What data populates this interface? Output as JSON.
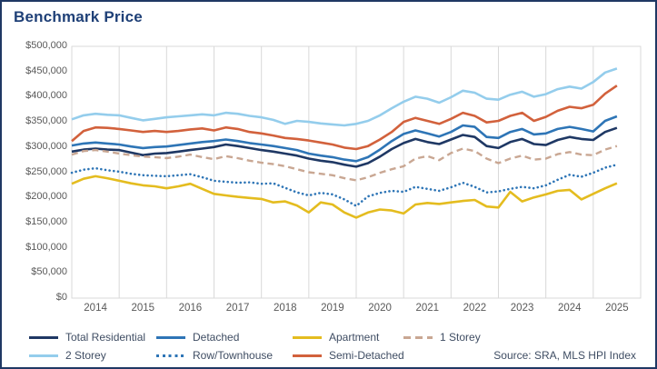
{
  "card": {
    "title": "Benchmark Price"
  },
  "colors": {
    "card_border": "#1F3864",
    "title_text": "#1F4077",
    "axis_text": "#595959",
    "legend_text": "#3F4D63",
    "gridline": "#D9D9D9"
  },
  "chart_data": {
    "type": "line",
    "title": "Benchmark Price",
    "xlabel": "",
    "ylabel": "",
    "xlim": [
      2014,
      2026
    ],
    "ylim": [
      0,
      500000
    ],
    "y_tick_step": 50000,
    "y_tick_labels": [
      "$0",
      "$50,000",
      "$100,000",
      "$150,000",
      "$200,000",
      "$250,000",
      "$300,000",
      "$350,000",
      "$400,000",
      "$450,000",
      "$500,000"
    ],
    "x_tick_labels": [
      "2014",
      "2015",
      "2016",
      "2017",
      "2018",
      "2019",
      "2020",
      "2021",
      "2022",
      "2023",
      "2024",
      "2025"
    ],
    "grid": "vertical-only",
    "legend_position": "bottom",
    "source": "Source: SRA, MLS HPI Index",
    "x_start": 2014,
    "x_step": 0.25,
    "series": [
      {
        "name": "Total Residential",
        "color": "#1F3864",
        "style": "solid",
        "values": [
          291000,
          295000,
          297000,
          295000,
          294000,
          289000,
          284000,
          287000,
          288000,
          291000,
          294000,
          297000,
          300000,
          305000,
          302000,
          298000,
          294000,
          291000,
          287000,
          283000,
          277000,
          273000,
          270000,
          265000,
          261000,
          268000,
          281000,
          296000,
          308000,
          316000,
          310000,
          306000,
          315000,
          324000,
          320000,
          302000,
          298000,
          310000,
          316000,
          306000,
          304000,
          314000,
          320000,
          316000,
          314000,
          330000,
          338000
        ]
      },
      {
        "name": "Detached",
        "color": "#2E75B6",
        "style": "solid",
        "values": [
          303000,
          307000,
          309000,
          307000,
          305000,
          301000,
          298000,
          300000,
          301000,
          304000,
          307000,
          310000,
          312000,
          315000,
          312000,
          308000,
          305000,
          302000,
          298000,
          294000,
          287000,
          283000,
          280000,
          275000,
          272000,
          280000,
          295000,
          312000,
          326000,
          333000,
          327000,
          321000,
          330000,
          343000,
          340000,
          320000,
          318000,
          330000,
          336000,
          325000,
          327000,
          336000,
          340000,
          336000,
          331000,
          352000,
          361000
        ]
      },
      {
        "name": "Apartment",
        "color": "#E4BC1F",
        "style": "solid",
        "values": [
          227000,
          237000,
          242000,
          238000,
          233000,
          228000,
          224000,
          222000,
          218000,
          222000,
          227000,
          217000,
          207000,
          204000,
          201000,
          199000,
          197000,
          190000,
          192000,
          184000,
          170000,
          190000,
          186000,
          170000,
          160000,
          170000,
          176000,
          174000,
          168000,
          186000,
          189000,
          187000,
          190000,
          193000,
          195000,
          182000,
          180000,
          211000,
          192000,
          200000,
          206000,
          213000,
          215000,
          196000,
          207000,
          218000,
          228000
        ]
      },
      {
        "name": "1 Storey",
        "color": "#C9A793",
        "style": "dashed",
        "values": [
          285000,
          292000,
          294000,
          291000,
          287000,
          284000,
          281000,
          280000,
          278000,
          281000,
          285000,
          280000,
          276000,
          282000,
          278000,
          273000,
          269000,
          266000,
          262000,
          256000,
          250000,
          247000,
          244000,
          238000,
          234000,
          240000,
          249000,
          256000,
          262000,
          277000,
          282000,
          274000,
          288000,
          297000,
          292000,
          277000,
          268000,
          277000,
          283000,
          275000,
          277000,
          286000,
          290000,
          285000,
          284000,
          295000,
          302000
        ]
      },
      {
        "name": "2 Storey",
        "color": "#94CDEC",
        "style": "solid",
        "values": [
          355000,
          363000,
          366000,
          364000,
          363000,
          358000,
          353000,
          356000,
          359000,
          361000,
          363000,
          365000,
          363000,
          368000,
          366000,
          362000,
          359000,
          354000,
          346000,
          352000,
          350000,
          347000,
          345000,
          343000,
          346000,
          352000,
          363000,
          377000,
          390000,
          400000,
          396000,
          388000,
          399000,
          412000,
          408000,
          396000,
          394000,
          404000,
          410000,
          400000,
          405000,
          415000,
          420000,
          416000,
          429000,
          448000,
          456000
        ]
      },
      {
        "name": "Row/Townhouse",
        "color": "#2E75B6",
        "style": "dotted",
        "values": [
          249000,
          255000,
          258000,
          254000,
          251000,
          247000,
          244000,
          243000,
          242000,
          244000,
          246000,
          240000,
          233000,
          231000,
          229000,
          230000,
          227000,
          228000,
          219000,
          210000,
          204000,
          209000,
          206000,
          196000,
          183000,
          202000,
          209000,
          213000,
          211000,
          221000,
          217000,
          213000,
          220000,
          229000,
          221000,
          210000,
          212000,
          217000,
          221000,
          218000,
          224000,
          235000,
          245000,
          241000,
          249000,
          259000,
          265000
        ]
      },
      {
        "name": "Semi-Detached",
        "color": "#D2613C",
        "style": "solid",
        "values": [
          312000,
          332000,
          339000,
          338000,
          336000,
          333000,
          330000,
          332000,
          330000,
          332000,
          335000,
          337000,
          333000,
          339000,
          336000,
          330000,
          327000,
          323000,
          318000,
          316000,
          313000,
          309000,
          305000,
          299000,
          296000,
          302000,
          315000,
          330000,
          350000,
          358000,
          352000,
          346000,
          356000,
          368000,
          362000,
          349000,
          352000,
          362000,
          368000,
          352000,
          360000,
          372000,
          380000,
          377000,
          384000,
          406000,
          422000
        ]
      }
    ]
  }
}
